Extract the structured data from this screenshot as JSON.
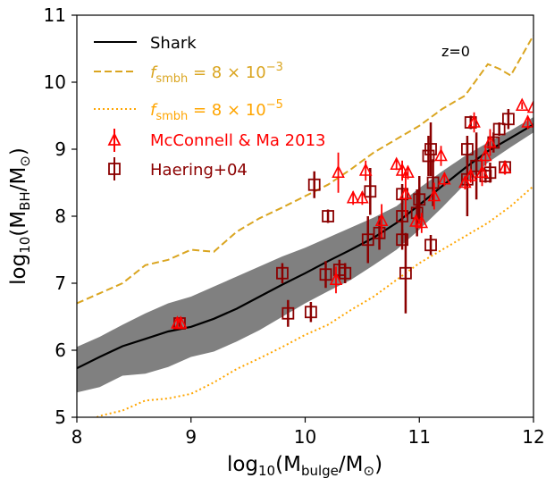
{
  "chart_data": {
    "type": "line",
    "xlabel_main": "log",
    "xlabel_sub": "10",
    "xlabel_paren_open": "(M",
    "xlabel_m_sub": "bulge",
    "xlabel_close": "/M",
    "xlabel_sun": "⊙",
    "xlabel_end": ")",
    "ylabel_main": "log",
    "ylabel_sub": "10",
    "ylabel_paren_open": "(M",
    "ylabel_m_sub": "BH",
    "ylabel_close": "/M",
    "ylabel_sun": "⊙",
    "ylabel_end": ")",
    "xlim": [
      8,
      12
    ],
    "ylim": [
      5,
      11
    ],
    "xticks": [
      8,
      9,
      10,
      11,
      12
    ],
    "yticks": [
      5,
      6,
      7,
      8,
      9,
      10,
      11
    ],
    "annotation": "z=0",
    "legend_placement": "top-left",
    "legend": {
      "shark": "Shark",
      "f_italic": "f",
      "f_sub": "smbh",
      "dashed_value": " = 8 × 10",
      "dashed_exp": "−3",
      "dotted_value": " = 8 × 10",
      "dotted_exp": "−5",
      "mcconnell": "McConnell & Ma 2013",
      "haering": "Haering+04"
    },
    "colors": {
      "shark": "#000000",
      "band": "#808080",
      "dashed": "#DAA520",
      "dotted": "#FFA500",
      "mcconnell": "#FF0000",
      "haering": "#8B0000"
    },
    "series": [
      {
        "name": "Shark",
        "style": "solid",
        "x": [
          8.0,
          8.2,
          8.4,
          8.6,
          8.8,
          9.0,
          9.2,
          9.4,
          9.6,
          9.8,
          10.0,
          10.2,
          10.4,
          10.6,
          10.8,
          11.0,
          11.2,
          11.4,
          11.6,
          11.8,
          12.0
        ],
        "y": [
          5.73,
          5.9,
          6.06,
          6.17,
          6.28,
          6.35,
          6.47,
          6.62,
          6.8,
          6.98,
          7.15,
          7.33,
          7.5,
          7.68,
          7.9,
          8.17,
          8.45,
          8.72,
          8.97,
          9.17,
          9.37
        ]
      },
      {
        "name": "fsmbh = 8e-3",
        "style": "dashed",
        "x": [
          8.0,
          8.2,
          8.4,
          8.6,
          8.8,
          9.0,
          9.2,
          9.4,
          9.6,
          9.8,
          10.0,
          10.2,
          10.4,
          10.6,
          10.8,
          11.0,
          11.2,
          11.4,
          11.6,
          11.7,
          11.8,
          12.0
        ],
        "y": [
          6.7,
          6.85,
          7.0,
          7.27,
          7.35,
          7.5,
          7.47,
          7.77,
          7.97,
          8.13,
          8.3,
          8.47,
          8.7,
          8.95,
          9.15,
          9.35,
          9.6,
          9.8,
          10.27,
          10.2,
          10.1,
          10.7
        ]
      },
      {
        "name": "fsmbh = 8e-5",
        "style": "dotted",
        "x": [
          8.0,
          8.2,
          8.4,
          8.6,
          8.8,
          9.0,
          9.2,
          9.4,
          9.6,
          9.8,
          10.0,
          10.2,
          10.4,
          10.6,
          10.8,
          11.0,
          11.2,
          11.4,
          11.6,
          11.8,
          12.0
        ],
        "y": [
          4.85,
          5.02,
          5.1,
          5.25,
          5.28,
          5.35,
          5.52,
          5.72,
          5.88,
          6.05,
          6.23,
          6.38,
          6.6,
          6.8,
          7.05,
          7.3,
          7.5,
          7.7,
          7.9,
          8.15,
          8.45
        ]
      }
    ],
    "band": {
      "x": [
        8.0,
        8.2,
        8.4,
        8.6,
        8.8,
        9.0,
        9.2,
        9.4,
        9.6,
        9.8,
        10.0,
        10.2,
        10.4,
        10.6,
        10.8,
        11.0,
        11.2,
        11.4,
        11.6,
        11.8,
        12.0
      ],
      "upper": [
        6.05,
        6.2,
        6.38,
        6.55,
        6.7,
        6.8,
        6.95,
        7.1,
        7.25,
        7.4,
        7.53,
        7.68,
        7.83,
        7.98,
        8.15,
        8.42,
        8.67,
        8.9,
        9.1,
        9.28,
        9.48
      ],
      "lower": [
        5.37,
        5.45,
        5.62,
        5.65,
        5.75,
        5.9,
        5.98,
        6.13,
        6.3,
        6.5,
        6.7,
        6.88,
        7.05,
        7.27,
        7.5,
        7.8,
        8.13,
        8.48,
        8.8,
        9.03,
        9.25
      ]
    },
    "mcconnell": [
      {
        "x": 8.88,
        "y": 6.4,
        "err": 0.08
      },
      {
        "x": 8.91,
        "y": 6.4,
        "err": 0.08
      },
      {
        "x": 10.27,
        "y": 7.05,
        "err": 0.2
      },
      {
        "x": 10.29,
        "y": 8.65,
        "err": 0.3
      },
      {
        "x": 10.42,
        "y": 8.27,
        "err": 0.1
      },
      {
        "x": 10.5,
        "y": 8.27,
        "err": 0.1
      },
      {
        "x": 10.53,
        "y": 8.68,
        "err": 0.15
      },
      {
        "x": 10.67,
        "y": 7.93,
        "err": 0.25
      },
      {
        "x": 10.8,
        "y": 8.77,
        "err": 0.08
      },
      {
        "x": 10.85,
        "y": 8.68,
        "err": 0.15
      },
      {
        "x": 10.88,
        "y": 8.33,
        "err": 0.35
      },
      {
        "x": 10.9,
        "y": 8.65,
        "err": 0.1
      },
      {
        "x": 10.97,
        "y": 7.92,
        "err": 0.1
      },
      {
        "x": 11.02,
        "y": 7.9,
        "err": 0.15
      },
      {
        "x": 11.13,
        "y": 8.3,
        "err": 0.2
      },
      {
        "x": 11.19,
        "y": 8.9,
        "err": 0.15
      },
      {
        "x": 11.22,
        "y": 8.55,
        "err": 0.1
      },
      {
        "x": 11.4,
        "y": 8.5,
        "err": 0.1
      },
      {
        "x": 11.45,
        "y": 8.6,
        "err": 0.1
      },
      {
        "x": 11.48,
        "y": 9.4,
        "err": 0.15
      },
      {
        "x": 11.55,
        "y": 8.65,
        "err": 0.2
      },
      {
        "x": 11.58,
        "y": 8.9,
        "err": 0.15
      },
      {
        "x": 11.62,
        "y": 9.1,
        "err": 0.2
      },
      {
        "x": 11.75,
        "y": 8.72,
        "err": 0.1
      },
      {
        "x": 11.9,
        "y": 9.65,
        "err": 0.05
      },
      {
        "x": 11.95,
        "y": 9.4,
        "err": 0.1
      },
      {
        "x": 12.0,
        "y": 9.62,
        "err": 0.05
      }
    ],
    "haering": [
      {
        "x": 8.9,
        "y": 6.4,
        "err": 0.05
      },
      {
        "x": 9.8,
        "y": 7.15,
        "err": 0.15
      },
      {
        "x": 9.85,
        "y": 6.55,
        "err": 0.2
      },
      {
        "x": 10.05,
        "y": 6.57,
        "err": 0.15
      },
      {
        "x": 10.08,
        "y": 8.47,
        "err": 0.2
      },
      {
        "x": 10.2,
        "y": 8.0,
        "err": 0.1
      },
      {
        "x": 10.18,
        "y": 7.13,
        "err": 0.2
      },
      {
        "x": 10.3,
        "y": 7.2,
        "err": 0.15
      },
      {
        "x": 10.35,
        "y": 7.15,
        "err": 0.15
      },
      {
        "x": 10.55,
        "y": 7.65,
        "err": 0.35
      },
      {
        "x": 10.57,
        "y": 8.37,
        "err": 0.35
      },
      {
        "x": 10.65,
        "y": 7.75,
        "err": 0.25
      },
      {
        "x": 10.85,
        "y": 8.33,
        "err": 0.15
      },
      {
        "x": 10.85,
        "y": 8.0,
        "err": 0.4
      },
      {
        "x": 10.85,
        "y": 7.65,
        "err": 0.15
      },
      {
        "x": 10.88,
        "y": 7.15,
        "err": 0.6
      },
      {
        "x": 10.98,
        "y": 8.05,
        "err": 0.35
      },
      {
        "x": 11.0,
        "y": 8.25,
        "err": 0.35
      },
      {
        "x": 11.08,
        "y": 8.9,
        "err": 0.3
      },
      {
        "x": 11.1,
        "y": 9.0,
        "err": 0.4
      },
      {
        "x": 11.1,
        "y": 7.57,
        "err": 0.15
      },
      {
        "x": 11.12,
        "y": 8.5,
        "err": 0.35
      },
      {
        "x": 11.42,
        "y": 8.55,
        "err": 0.55
      },
      {
        "x": 11.42,
        "y": 9.0,
        "err": 0.2
      },
      {
        "x": 11.45,
        "y": 9.4,
        "err": 0.1
      },
      {
        "x": 11.5,
        "y": 8.75,
        "err": 0.5
      },
      {
        "x": 11.58,
        "y": 8.6,
        "err": 0.1
      },
      {
        "x": 11.62,
        "y": 8.65,
        "err": 0.15
      },
      {
        "x": 11.65,
        "y": 9.1,
        "err": 0.15
      },
      {
        "x": 11.7,
        "y": 9.3,
        "err": 0.1
      },
      {
        "x": 11.75,
        "y": 8.73,
        "err": 0.1
      },
      {
        "x": 11.78,
        "y": 9.45,
        "err": 0.15
      }
    ]
  }
}
